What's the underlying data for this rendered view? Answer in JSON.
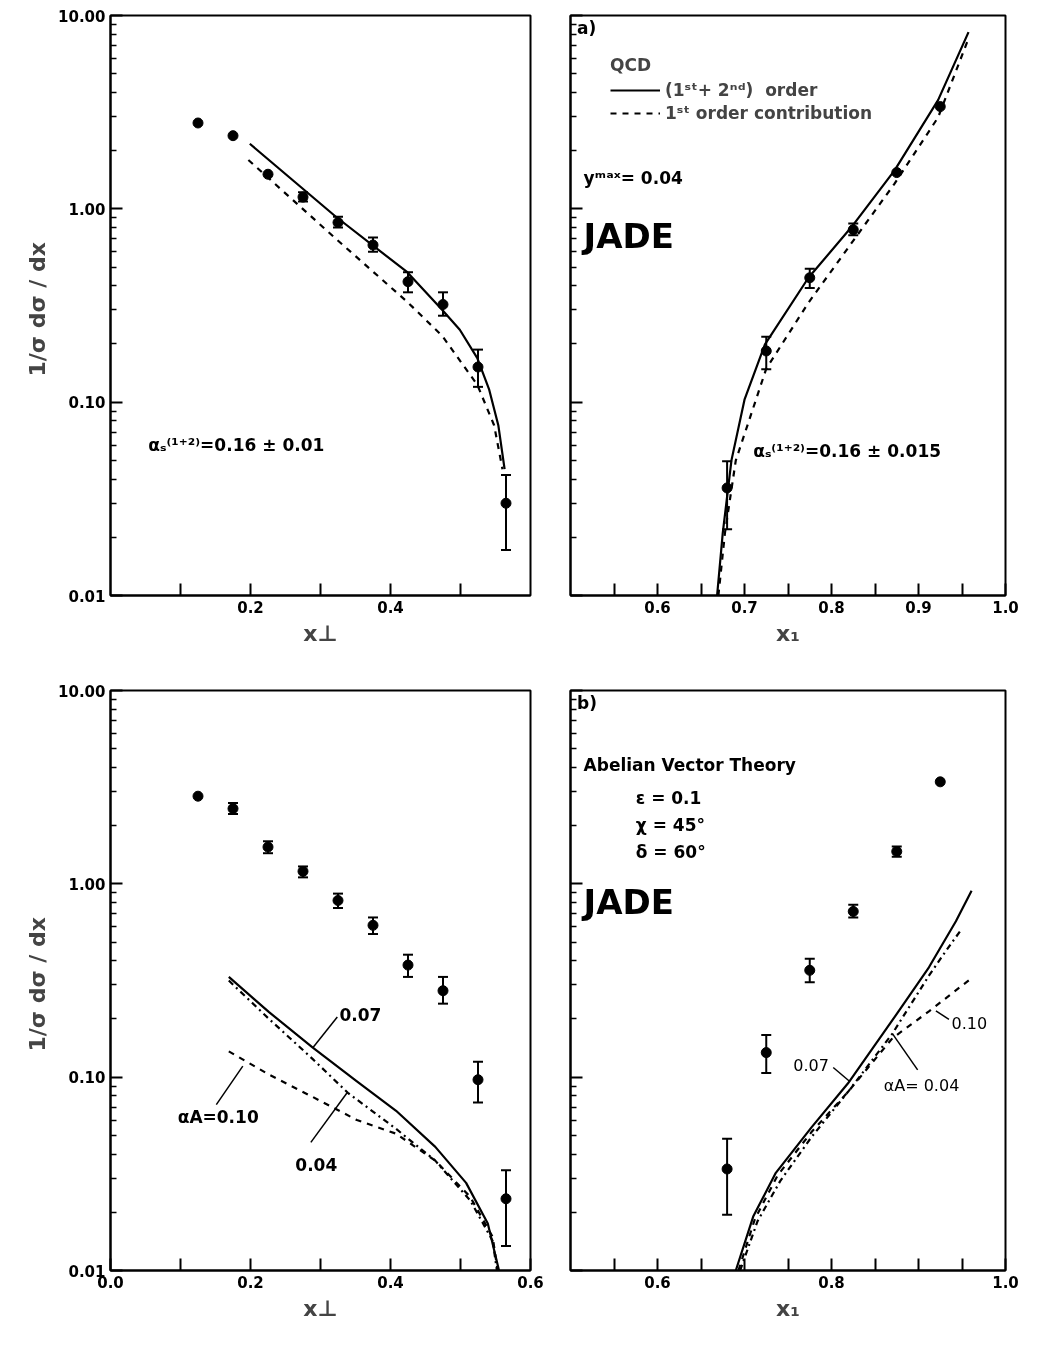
{
  "chart_data": [
    {
      "type": "scatter",
      "xlabel": "x⊥",
      "ylabel": "1/σ  dσ / dx",
      "xlim": [
        0,
        0.6
      ],
      "ylim": [
        0.01,
        10
      ],
      "log": "y",
      "grid": false,
      "xticks": [
        {
          "value": 0.1,
          "label": null
        },
        0.2,
        {
          "value": 0.3,
          "label": null
        },
        0.4,
        {
          "value": 0.5,
          "label": null
        }
      ],
      "yticks": [
        0.01,
        {
          "value": 0.1,
          "label": "0.10"
        },
        {
          "value": 1,
          "label": "1.00"
        },
        {
          "value": 10,
          "label": "10.00"
        }
      ],
      "annotations": [
        "αₛ⁽¹⁺²⁾=0.16 ± 0.01"
      ],
      "series": [
        {
          "marker": "circle",
          "color": "#000000",
          "x": [
            0.125,
            0.175,
            0.225,
            0.275,
            0.325,
            0.375,
            0.425,
            0.475,
            0.525,
            0.565
          ],
          "values": [
            2.78,
            2.39,
            1.51,
            1.15,
            0.85,
            0.65,
            0.42,
            0.32,
            0.152,
            0.03
          ],
          "errors": [
            null,
            null,
            null,
            [
              1.09,
              1.22
            ],
            [
              0.8,
              0.91
            ],
            [
              0.6,
              0.71
            ],
            [
              0.37,
              0.47
            ],
            [
              0.28,
              0.37
            ],
            [
              0.12,
              0.187
            ],
            [
              0.0172,
              0.042
            ]
          ]
        },
        {
          "type": "line",
          "color": "#000000",
          "line_style": "solid",
          "x": [
            0.199,
            0.322,
            0.424,
            0.474,
            0.499,
            0.524,
            0.541,
            0.554,
            0.563
          ],
          "values": [
            2.17,
            0.91,
            0.47,
            0.3,
            0.237,
            0.169,
            0.116,
            0.076,
            0.045
          ]
        },
        {
          "type": "line",
          "color": "#000000",
          "line_style": "dashed",
          "x": [
            0.197,
            0.322,
            0.424,
            0.474,
            0.524,
            0.548,
            0.56
          ],
          "values": [
            1.79,
            0.7,
            0.33,
            0.22,
            0.123,
            0.076,
            0.045
          ]
        }
      ]
    },
    {
      "type": "scatter",
      "xlabel": "x₁",
      "xlim": [
        0.5,
        1.0
      ],
      "ylim": [
        0.01,
        10
      ],
      "log": "y",
      "grid": false,
      "tick_labels": "x",
      "legend": "top left",
      "legend_title": "QCD",
      "xticks": [
        {
          "value": 0.55,
          "label": null
        },
        0.6,
        {
          "value": 0.65,
          "label": null
        },
        0.7,
        {
          "value": 0.75,
          "label": null
        },
        0.8,
        {
          "value": 0.85,
          "label": null
        },
        0.9,
        {
          "value": 0.95,
          "label": null
        },
        {
          "value": 1,
          "label": "1.0"
        }
      ],
      "yticks": [
        {
          "value": 0.01,
          "label": null
        },
        {
          "value": 0.1,
          "label": null
        },
        {
          "value": 1,
          "label": null
        },
        {
          "value": 10,
          "label": null
        }
      ],
      "annotations": [
        "a)",
        "yᵐᵃˣ= 0.04",
        "JADE",
        "αₛ⁽¹⁺²⁾=0.16 ± 0.015"
      ],
      "series": [
        {
          "marker": "circle",
          "color": "#000000",
          "x": [
            0.68,
            0.725,
            0.775,
            0.825,
            0.875,
            0.925
          ],
          "values": [
            0.036,
            0.184,
            0.44,
            0.78,
            1.54,
            3.38
          ],
          "errors": [
            [
              0.022,
              0.0495
            ],
            [
              0.148,
              0.218
            ],
            [
              0.39,
              0.49
            ],
            [
              0.73,
              0.84
            ],
            null,
            null
          ]
        },
        {
          "type": "line",
          "name": "(1ˢᵗ+ 2ⁿᵈ)  order",
          "color": "#000000",
          "line_style": "solid",
          "x": [
            0.6685,
            0.675,
            0.685,
            0.7,
            0.7235,
            0.7735,
            0.8225,
            0.8725,
            0.9225,
            0.9575
          ],
          "values": [
            0.01,
            0.021,
            0.05,
            0.103,
            0.199,
            0.44,
            0.8,
            1.58,
            3.65,
            8.2
          ]
        },
        {
          "type": "line",
          "name": "1ˢᵗ order contribution",
          "color": "#000000",
          "line_style": "dashed",
          "x": [
            0.67,
            0.6775,
            0.69,
            0.725,
            0.7735,
            0.8225,
            0.8725,
            0.9225,
            0.9575
          ],
          "values": [
            0.01,
            0.021,
            0.05,
            0.149,
            0.327,
            0.66,
            1.35,
            2.97,
            7.6
          ]
        }
      ]
    },
    {
      "type": "scatter",
      "xlabel": "x⊥",
      "ylabel": "1/σ  dσ / dx",
      "xlim": [
        0,
        0.6
      ],
      "ylim": [
        0.01,
        10
      ],
      "log": "y",
      "grid": false,
      "xticks": [
        {
          "value": 0,
          "label": "0.0"
        },
        {
          "value": 0.1,
          "label": null
        },
        0.2,
        {
          "value": 0.3,
          "label": null
        },
        0.4,
        {
          "value": 0.5,
          "label": null
        },
        0.6
      ],
      "yticks": [
        0.01,
        {
          "value": 0.1,
          "label": "0.10"
        },
        {
          "value": 1,
          "label": "1.00"
        },
        {
          "value": 10,
          "label": "10.00"
        }
      ],
      "annotations": [
        {
          "text": "αA=0.10",
          "x": 0.189,
          "y": 0.114
        },
        {
          "text": "0.04",
          "x": 0.338,
          "y": 0.083
        },
        {
          "text": "0.07",
          "x": 0.289,
          "y": 0.142
        }
      ],
      "series": [
        {
          "marker": "circle",
          "color": "#000000",
          "x": [
            0.125,
            0.175,
            0.225,
            0.275,
            0.325,
            0.375,
            0.425,
            0.475,
            0.525,
            0.565
          ],
          "values": [
            2.84,
            2.45,
            1.55,
            1.16,
            0.82,
            0.61,
            0.38,
            0.28,
            0.097,
            0.0235
          ],
          "errors": [
            null,
            [
              2.3,
              2.62
            ],
            [
              1.44,
              1.66
            ],
            [
              1.08,
              1.23
            ],
            [
              0.75,
              0.89
            ],
            [
              0.55,
              0.67
            ],
            [
              0.33,
              0.43
            ],
            [
              0.24,
              0.33
            ],
            [
              0.074,
              0.12
            ],
            [
              0.0134,
              0.033
            ]
          ]
        },
        {
          "type": "line",
          "color": "#000000",
          "line_style": "solid",
          "x": [
            0.169,
            0.2265,
            0.289,
            0.352,
            0.408,
            0.464,
            0.508,
            0.539,
            0.555
          ],
          "values": [
            0.33,
            0.217,
            0.142,
            0.095,
            0.067,
            0.0436,
            0.0284,
            0.0175,
            0.01
          ]
        },
        {
          "type": "line",
          "color": "#000000",
          "line_style": "dashdot",
          "x": [
            0.169,
            0.2265,
            0.289,
            0.339,
            0.408,
            0.464,
            0.514,
            0.546,
            0.552
          ],
          "values": [
            0.316,
            0.2,
            0.124,
            0.083,
            0.054,
            0.037,
            0.023,
            0.0142,
            0.01
          ]
        },
        {
          "type": "line",
          "color": "#000000",
          "line_style": "dashed",
          "x": [
            0.169,
            0.2265,
            0.289,
            0.352,
            0.408,
            0.464,
            0.514,
            0.546,
            0.553
          ],
          "values": [
            0.136,
            0.103,
            0.079,
            0.06,
            0.051,
            0.037,
            0.024,
            0.0149,
            0.01
          ]
        }
      ]
    },
    {
      "type": "scatter",
      "xlabel": "x₁",
      "xlim": [
        0.5,
        1.0
      ],
      "ylim": [
        0.01,
        10
      ],
      "log": "y",
      "grid": false,
      "tick_labels": "x",
      "xticks": [
        {
          "value": 0.55,
          "label": null
        },
        0.6,
        {
          "value": 0.65,
          "label": null
        },
        {
          "value": 0.7,
          "label": null
        },
        {
          "value": 0.75,
          "label": null
        },
        0.8,
        {
          "value": 0.85,
          "label": null
        },
        {
          "value": 0.9,
          "label": null
        },
        {
          "value": 0.95,
          "label": null
        },
        {
          "value": 1,
          "label": "1.0"
        }
      ],
      "yticks": [
        {
          "value": 0.01,
          "label": null
        },
        {
          "value": 0.1,
          "label": null
        },
        {
          "value": 1,
          "label": null
        },
        {
          "value": 10,
          "label": null
        }
      ],
      "annotations": [
        "b)",
        "Abelian  Vector  Theory",
        "ε =  0.1",
        "χ =  45°",
        "δ =  60°",
        "JADE",
        {
          "text": "0.07",
          "x": 0.821,
          "y": 0.095
        },
        {
          "text": "αA= 0.04",
          "x": 0.87,
          "y": 0.168
        },
        {
          "text": "0.10",
          "x": 0.92,
          "y": 0.22
        }
      ],
      "series": [
        {
          "marker": "circle",
          "color": "#000000",
          "x": [
            0.68,
            0.725,
            0.775,
            0.825,
            0.875,
            0.925
          ],
          "values": [
            0.0335,
            0.134,
            0.357,
            0.72,
            1.47,
            3.37
          ],
          "errors": [
            [
              0.0194,
              0.048
            ],
            [
              0.105,
              0.165
            ],
            [
              0.31,
              0.41
            ],
            [
              0.67,
              0.78
            ],
            [
              1.38,
              1.56
            ],
            null
          ]
        },
        {
          "type": "line",
          "color": "#000000",
          "line_style": "solid",
          "x": [
            0.69,
            0.71,
            0.736,
            0.777,
            0.819,
            0.87,
            0.912,
            0.943,
            0.961
          ],
          "values": [
            0.01,
            0.019,
            0.032,
            0.055,
            0.093,
            0.197,
            0.37,
            0.64,
            0.92
          ]
        },
        {
          "type": "line",
          "color": "#000000",
          "line_style": "dashdot",
          "x": [
            0.695,
            0.715,
            0.741,
            0.777,
            0.819,
            0.87,
            0.912,
            0.933,
            0.948
          ],
          "values": [
            0.01,
            0.018,
            0.029,
            0.049,
            0.084,
            0.168,
            0.335,
            0.46,
            0.57
          ]
        },
        {
          "type": "line",
          "color": "#000000",
          "line_style": "dashed",
          "x": [
            0.693,
            0.712,
            0.738,
            0.777,
            0.819,
            0.87,
            0.912,
            0.959
          ],
          "values": [
            0.01,
            0.0185,
            0.031,
            0.052,
            0.084,
            0.159,
            0.219,
            0.32
          ]
        }
      ]
    }
  ]
}
